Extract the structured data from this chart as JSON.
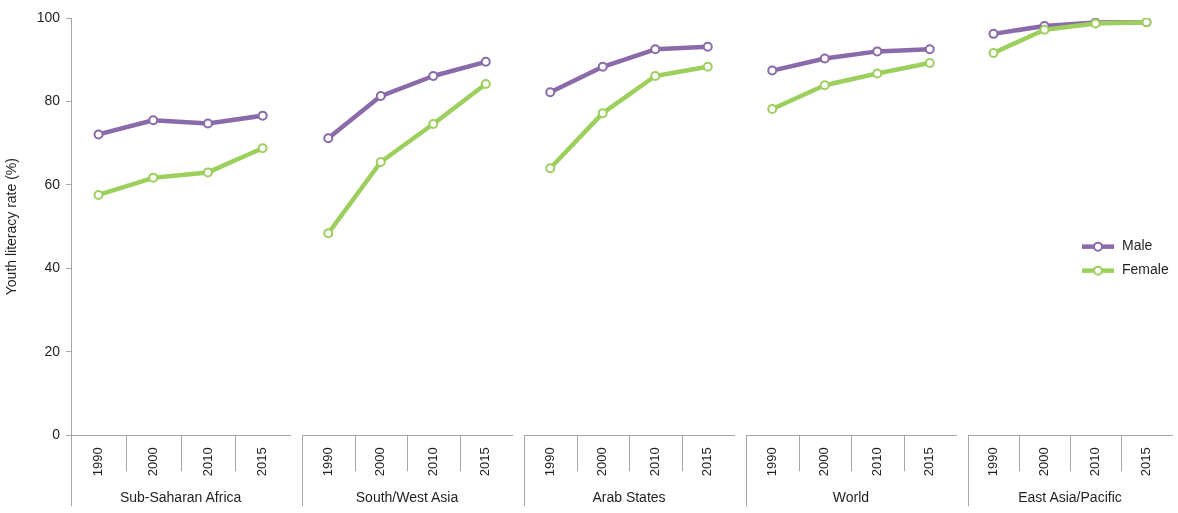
{
  "chart_data": [
    {
      "type": "line",
      "xlabel": "Sub-Saharan Africa",
      "ylabel": "Youth literacy rate (%)",
      "categories": [
        "1990",
        "2000",
        "2010",
        "2015"
      ],
      "ylim": [
        0,
        100
      ],
      "yticks": [
        0,
        20,
        40,
        60,
        80,
        100
      ],
      "marker": "circle",
      "series": [
        {
          "color": "#8a6aa8",
          "values": [
            72.1,
            75.5,
            74.7,
            76.6
          ]
        },
        {
          "color": "#9ccf5c",
          "values": [
            57.6,
            61.7,
            63.0,
            68.8
          ]
        }
      ]
    },
    {
      "type": "line",
      "xlabel": "South/West Asia",
      "categories": [
        "1990",
        "2000",
        "2010",
        "2015"
      ],
      "ylim": [
        0,
        100
      ],
      "yticks": [
        0,
        20,
        40,
        60,
        80,
        100
      ],
      "tick_labels": "x",
      "marker": "circle",
      "series": [
        {
          "color": "#8a6aa8",
          "values": [
            71.2,
            81.3,
            86.1,
            89.5
          ]
        },
        {
          "color": "#9ccf5c",
          "values": [
            48.4,
            65.5,
            74.6,
            84.2
          ]
        }
      ]
    },
    {
      "type": "line",
      "xlabel": "Arab States",
      "categories": [
        "1990",
        "2000",
        "2010",
        "2015"
      ],
      "ylim": [
        0,
        100
      ],
      "yticks": [
        0,
        20,
        40,
        60,
        80,
        100
      ],
      "tick_labels": "x",
      "marker": "circle",
      "series": [
        {
          "color": "#8a6aa8",
          "values": [
            82.2,
            88.3,
            92.5,
            93.1
          ]
        },
        {
          "color": "#9ccf5c",
          "values": [
            64.0,
            77.2,
            86.1,
            88.3
          ]
        }
      ]
    },
    {
      "type": "line",
      "xlabel": "World",
      "categories": [
        "1990",
        "2000",
        "2010",
        "2015"
      ],
      "ylim": [
        0,
        100
      ],
      "yticks": [
        0,
        20,
        40,
        60,
        80,
        100
      ],
      "tick_labels": "x",
      "marker": "circle",
      "series": [
        {
          "color": "#8a6aa8",
          "values": [
            87.4,
            90.3,
            92.0,
            92.5
          ]
        },
        {
          "color": "#9ccf5c",
          "values": [
            78.2,
            83.9,
            86.7,
            89.2
          ]
        }
      ]
    },
    {
      "type": "line",
      "xlabel": "East Asia/Pacific",
      "categories": [
        "1990",
        "2000",
        "2010",
        "2015"
      ],
      "ylim": [
        0,
        100
      ],
      "yticks": [
        0,
        20,
        40,
        60,
        80,
        100
      ],
      "tick_labels": "x",
      "marker": "circle",
      "legend": "right",
      "series": [
        {
          "name": "Male",
          "color": "#8a6aa8",
          "values": [
            96.2,
            98.1,
            98.9,
            99.0
          ]
        },
        {
          "name": "Female",
          "color": "#9ccf5c",
          "values": [
            91.6,
            97.2,
            98.7,
            99.0
          ]
        }
      ]
    }
  ]
}
